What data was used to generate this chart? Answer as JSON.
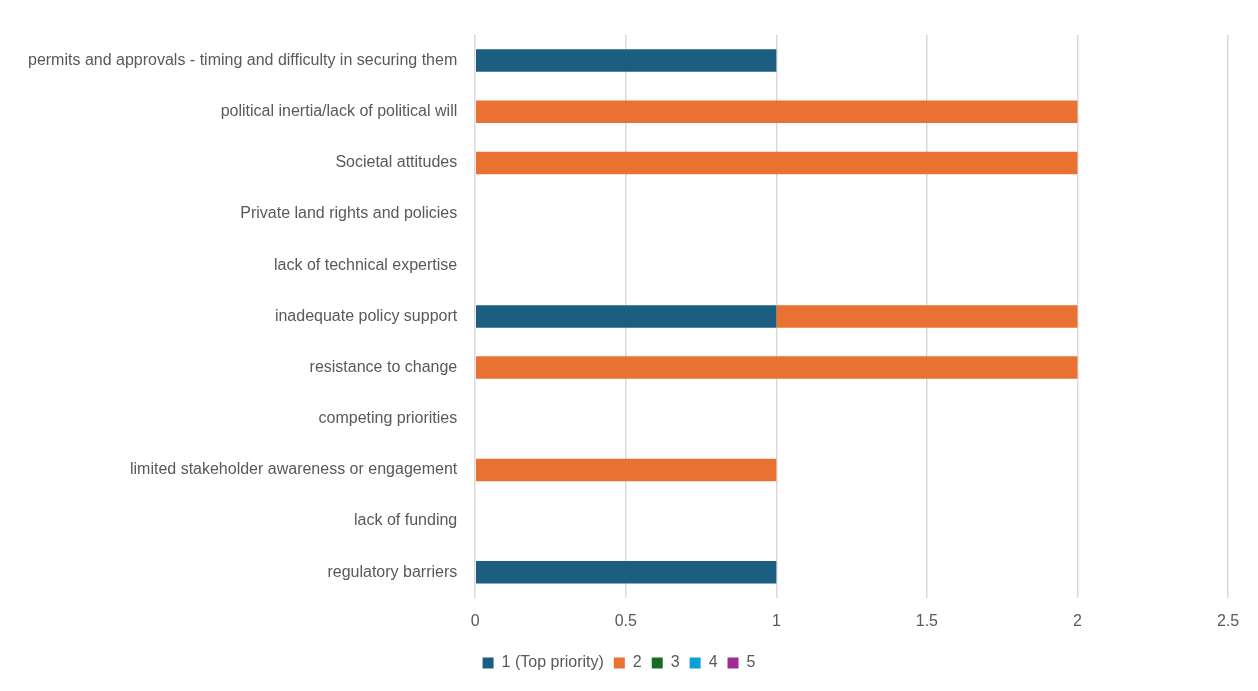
{
  "chart_data": {
    "type": "bar",
    "orientation": "horizontal",
    "stacked": true,
    "categories": [
      "permits and approvals - timing and difficulty in securing them",
      "political inertia/lack of political will",
      "Societal attitudes",
      "Private land rights and policies",
      "lack of technical expertise",
      "inadequate policy support",
      "resistance to change",
      "competing priorities",
      "limited stakeholder awareness or engagement",
      "lack of funding",
      "regulatory barriers"
    ],
    "series": [
      {
        "name": "1 (Top priority)",
        "color": "#1b5e80",
        "values": [
          1,
          0,
          0,
          0,
          0,
          1,
          0,
          0,
          0,
          0,
          1
        ]
      },
      {
        "name": "2",
        "color": "#e97132",
        "values": [
          0,
          2,
          2,
          0,
          0,
          1,
          2,
          0,
          1,
          0,
          0
        ]
      },
      {
        "name": "3",
        "color": "#196b24",
        "values": [
          0,
          0,
          0,
          0,
          0,
          0,
          0,
          0,
          0,
          0,
          0
        ]
      },
      {
        "name": "4",
        "color": "#0f9ed5",
        "values": [
          0,
          0,
          0,
          0,
          0,
          0,
          0,
          0,
          0,
          0,
          0
        ]
      },
      {
        "name": "5",
        "color": "#a02b93",
        "values": [
          0,
          0,
          0,
          0,
          0,
          0,
          0,
          0,
          0,
          0,
          0
        ]
      }
    ],
    "xlim": [
      0,
      2.5
    ],
    "xticks": [
      0,
      0.5,
      1,
      1.5,
      2,
      2.5
    ],
    "grid": "x",
    "legend": "bottom"
  }
}
